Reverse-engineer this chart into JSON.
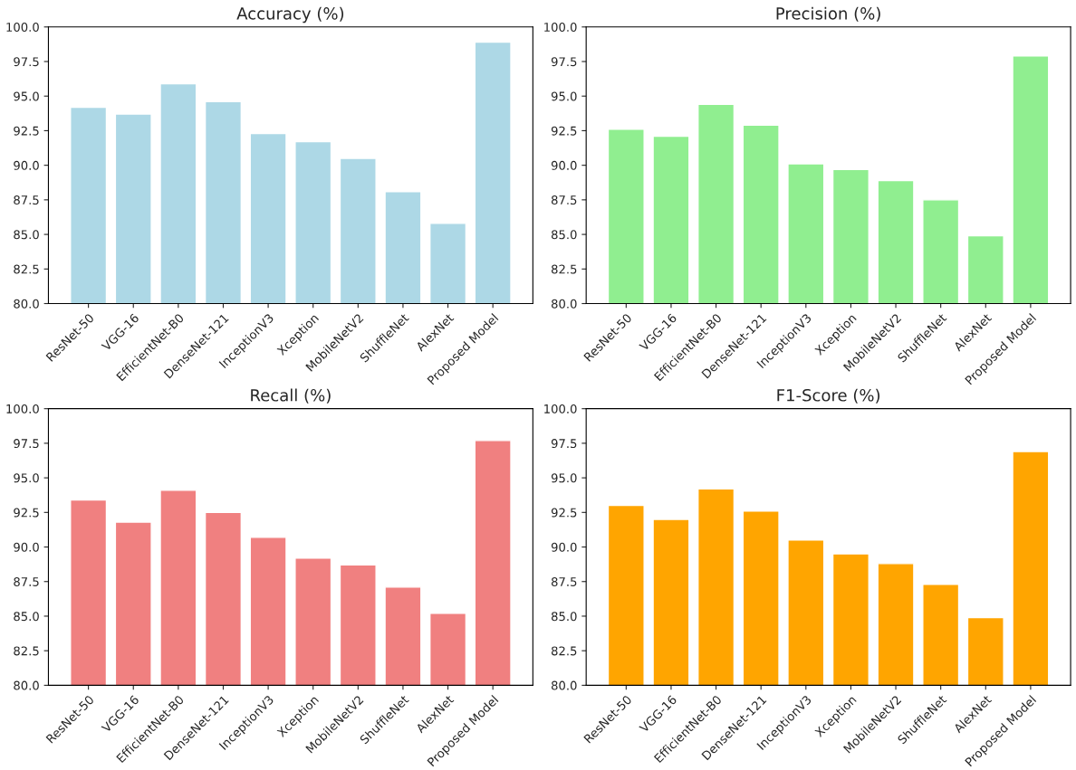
{
  "chart_data": [
    {
      "type": "bar",
      "title": "Accuracy (%)",
      "categories": [
        "ResNet-50",
        "VGG-16",
        "EfficientNet-B0",
        "DenseNet-121",
        "InceptionV3",
        "Xception",
        "MobileNetV2",
        "ShuffleNet",
        "AlexNet",
        "Proposed Model"
      ],
      "values": [
        94.2,
        93.7,
        95.9,
        94.6,
        92.3,
        91.7,
        90.5,
        88.1,
        85.8,
        98.9
      ],
      "color": "#add8e6",
      "ylim": [
        80,
        100
      ],
      "yticks": [
        {
          "value": 80,
          "label": "80.0"
        },
        {
          "value": 82.5,
          "label": "82.5"
        },
        {
          "value": 85,
          "label": "85.0"
        },
        {
          "value": 87.5,
          "label": "87.5"
        },
        {
          "value": 90,
          "label": "90.0"
        },
        {
          "value": 92.5,
          "label": "92.5"
        },
        {
          "value": 95,
          "label": "95.0"
        },
        {
          "value": 97.5,
          "label": "97.5"
        },
        {
          "value": 100,
          "label": "100.0"
        }
      ]
    },
    {
      "type": "bar",
      "title": "Precision (%)",
      "categories": [
        "ResNet-50",
        "VGG-16",
        "EfficientNet-B0",
        "DenseNet-121",
        "InceptionV3",
        "Xception",
        "MobileNetV2",
        "ShuffleNet",
        "AlexNet",
        "Proposed Model"
      ],
      "values": [
        92.6,
        92.1,
        94.4,
        92.9,
        90.1,
        89.7,
        88.9,
        87.5,
        84.9,
        97.9
      ],
      "color": "#90ee90",
      "ylim": [
        80,
        100
      ],
      "yticks": [
        {
          "value": 80,
          "label": "80.0"
        },
        {
          "value": 82.5,
          "label": "82.5"
        },
        {
          "value": 85,
          "label": "85.0"
        },
        {
          "value": 87.5,
          "label": "87.5"
        },
        {
          "value": 90,
          "label": "90.0"
        },
        {
          "value": 92.5,
          "label": "92.5"
        },
        {
          "value": 95,
          "label": "95.0"
        },
        {
          "value": 97.5,
          "label": "97.5"
        },
        {
          "value": 100,
          "label": "100.0"
        }
      ]
    },
    {
      "type": "bar",
      "title": "Recall (%)",
      "categories": [
        "ResNet-50",
        "VGG-16",
        "EfficientNet-B0",
        "DenseNet-121",
        "InceptionV3",
        "Xception",
        "MobileNetV2",
        "ShuffleNet",
        "AlexNet",
        "Proposed Model"
      ],
      "values": [
        93.4,
        91.8,
        94.1,
        92.5,
        90.7,
        89.2,
        88.7,
        87.1,
        85.2,
        97.7
      ],
      "color": "#f08080",
      "ylim": [
        80,
        100
      ],
      "yticks": [
        {
          "value": 80,
          "label": "80.0"
        },
        {
          "value": 82.5,
          "label": "82.5"
        },
        {
          "value": 85,
          "label": "85.0"
        },
        {
          "value": 87.5,
          "label": "87.5"
        },
        {
          "value": 90,
          "label": "90.0"
        },
        {
          "value": 92.5,
          "label": "92.5"
        },
        {
          "value": 95,
          "label": "95.0"
        },
        {
          "value": 97.5,
          "label": "97.5"
        },
        {
          "value": 100,
          "label": "100.0"
        }
      ]
    },
    {
      "type": "bar",
      "title": "F1-Score (%)",
      "categories": [
        "ResNet-50",
        "VGG-16",
        "EfficientNet-B0",
        "DenseNet-121",
        "InceptionV3",
        "Xception",
        "MobileNetV2",
        "ShuffleNet",
        "AlexNet",
        "Proposed Model"
      ],
      "values": [
        93.0,
        92.0,
        94.2,
        92.6,
        90.5,
        89.5,
        88.8,
        87.3,
        84.9,
        96.9
      ],
      "color": "#ffa500",
      "ylim": [
        80,
        100
      ],
      "yticks": [
        {
          "value": 80,
          "label": "80.0"
        },
        {
          "value": 82.5,
          "label": "82.5"
        },
        {
          "value": 85,
          "label": "85.0"
        },
        {
          "value": 87.5,
          "label": "87.5"
        },
        {
          "value": 90,
          "label": "90.0"
        },
        {
          "value": 92.5,
          "label": "92.5"
        },
        {
          "value": 95,
          "label": "95.0"
        },
        {
          "value": 97.5,
          "label": "97.5"
        },
        {
          "value": 100,
          "label": "100.0"
        }
      ]
    }
  ]
}
